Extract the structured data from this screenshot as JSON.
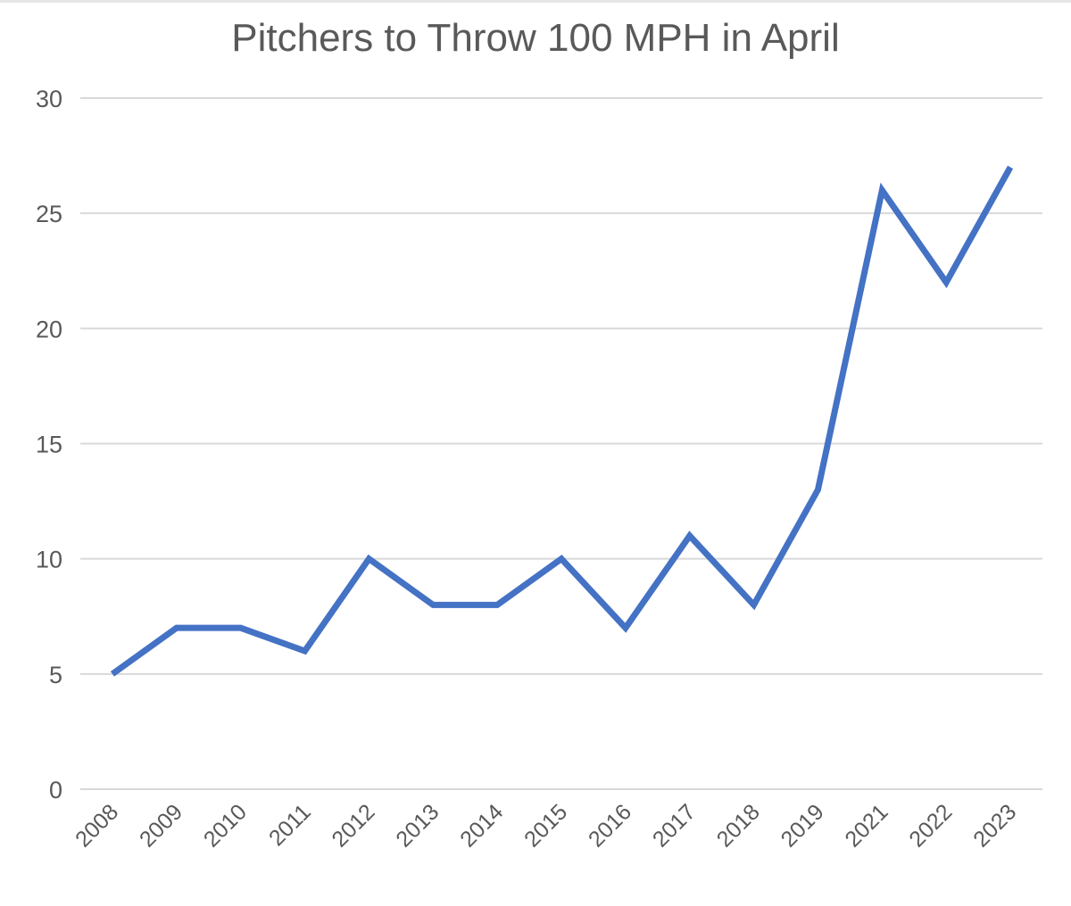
{
  "chart_data": {
    "type": "line",
    "title": "Pitchers to Throw 100 MPH in April",
    "xlabel": "",
    "ylabel": "",
    "categories": [
      "2008",
      "2009",
      "2010",
      "2011",
      "2012",
      "2013",
      "2014",
      "2015",
      "2016",
      "2017",
      "2018",
      "2019",
      "2021",
      "2022",
      "2023"
    ],
    "series": [
      {
        "values": [
          5,
          7,
          7,
          6,
          10,
          8,
          8,
          10,
          7,
          11,
          8,
          13,
          26,
          22,
          27
        ],
        "color": "#4472c4"
      }
    ],
    "ylim": [
      0,
      30
    ],
    "yticks": [
      0,
      5,
      10,
      15,
      20,
      25,
      30
    ],
    "grid": true,
    "legend": "none"
  }
}
